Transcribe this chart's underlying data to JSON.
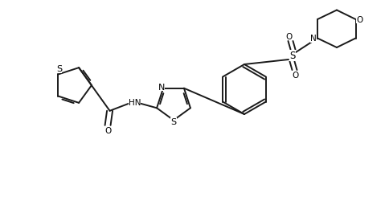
{
  "bg_color": "#ffffff",
  "line_color": "#1a1a1a",
  "line_width": 1.4,
  "figsize": [
    4.85,
    2.51
  ],
  "dpi": 100,
  "xlim": [
    0,
    9.7
  ],
  "ylim": [
    0,
    5.02
  ]
}
